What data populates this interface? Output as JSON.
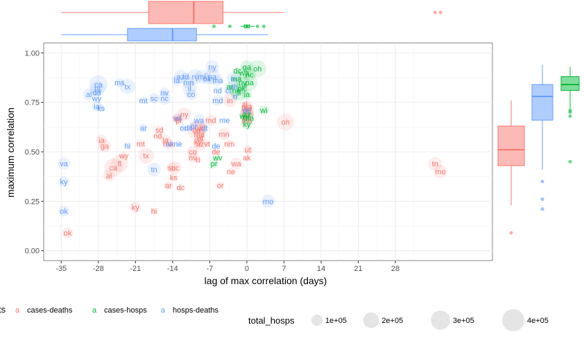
{
  "chart_data": {
    "type": "scatter",
    "xlabel": "lag of max correlation (days)",
    "ylabel": "maximum correlation",
    "xlim": [
      -38.3,
      46.3
    ],
    "ylim": [
      -0.05,
      1.05
    ],
    "x_ticks": [
      -35,
      -28,
      -21,
      -14,
      -7,
      0,
      7,
      14,
      21,
      28
    ],
    "y_ticks": [
      0.0,
      0.25,
      0.5,
      0.75,
      1.0
    ],
    "y_tick_labels": [
      "0.00",
      "0.25",
      "0.50",
      "0.75",
      "1.00"
    ],
    "grid": true,
    "legend_placement": "bottom",
    "series": [
      {
        "name": "cases-deaths",
        "color": "#F8766D",
        "points": [
          {
            "x": -33.8,
            "y": 0.09,
            "label": "ok",
            "size": 100000.0
          },
          {
            "x": -27.4,
            "y": 0.56,
            "label": "ia",
            "size": 90000.0
          },
          {
            "x": -26.8,
            "y": 0.53,
            "label": "ga",
            "size": 130000.0
          },
          {
            "x": -25.2,
            "y": 0.42,
            "label": "ca",
            "size": 280000.0
          },
          {
            "x": -26.0,
            "y": 0.38,
            "label": "al",
            "size": 110000.0
          },
          {
            "x": -24.0,
            "y": 0.44,
            "label": "fl",
            "size": 240000.0
          },
          {
            "x": -23.2,
            "y": 0.48,
            "label": "wy",
            "size": 50000.0
          },
          {
            "x": -20.0,
            "y": 0.54,
            "label": "mt",
            "size": 50000.0
          },
          {
            "x": -19.0,
            "y": 0.48,
            "label": "tx",
            "size": 200000.0
          },
          {
            "x": -21.0,
            "y": 0.22,
            "label": "ky",
            "size": 100000.0
          },
          {
            "x": -17.5,
            "y": 0.2,
            "label": "hi",
            "size": 40000.0
          },
          {
            "x": -16.5,
            "y": 0.61,
            "label": "sd",
            "size": 60000.0
          },
          {
            "x": -16.8,
            "y": 0.58,
            "label": "nd",
            "size": 50000.0
          },
          {
            "x": -14.8,
            "y": 0.54,
            "label": "ma",
            "size": 100000.0
          },
          {
            "x": -15.3,
            "y": 0.56,
            "label": "la",
            "size": 90000.0
          },
          {
            "x": -14.2,
            "y": 0.42,
            "label": "sc",
            "size": 90000.0
          },
          {
            "x": -13.5,
            "y": 0.42,
            "label": "nc",
            "size": 130000.0
          },
          {
            "x": -13.8,
            "y": 0.37,
            "label": "ks",
            "size": 50000.0
          },
          {
            "x": -14.8,
            "y": 0.33,
            "label": "ar",
            "size": 60000.0
          },
          {
            "x": -12.5,
            "y": 0.32,
            "label": "dc",
            "size": 40000.0
          },
          {
            "x": -13.2,
            "y": 0.67,
            "label": "wi",
            "size": 80000.0
          },
          {
            "x": -12.8,
            "y": 0.66,
            "label": "pr",
            "size": 70000.0
          },
          {
            "x": -11.8,
            "y": 0.69,
            "label": "ny",
            "size": 150000.0
          },
          {
            "x": -9.5,
            "y": 0.61,
            "label": "ca",
            "size": 280000.0
          },
          {
            "x": -9.0,
            "y": 0.62,
            "label": "pa",
            "size": 210000.0
          },
          {
            "x": -8.4,
            "y": 0.62,
            "label": "id",
            "size": 60000.0
          },
          {
            "x": -6.8,
            "y": 0.66,
            "label": "md",
            "size": 100000.0
          },
          {
            "x": -9.0,
            "y": 0.59,
            "label": "ma",
            "size": 100000.0
          },
          {
            "x": -8.8,
            "y": 0.57,
            "label": "ut",
            "size": 70000.0
          },
          {
            "x": -9.2,
            "y": 0.55,
            "label": "ky",
            "size": 100000.0
          },
          {
            "x": -8.8,
            "y": 0.54,
            "label": "az",
            "size": 150000.0
          },
          {
            "x": -7.5,
            "y": 0.54,
            "label": "vt",
            "size": 30000.0
          },
          {
            "x": -10.2,
            "y": 0.5,
            "label": "co",
            "size": 110000.0
          },
          {
            "x": -10.2,
            "y": 0.47,
            "label": "nv",
            "size": 80000.0
          },
          {
            "x": -9.2,
            "y": 0.46,
            "label": "ri",
            "size": 40000.0
          },
          {
            "x": -5.8,
            "y": 0.5,
            "label": "de",
            "size": 30000.0
          },
          {
            "x": -4.3,
            "y": 0.59,
            "label": "mn",
            "size": 120000.0
          },
          {
            "x": -3.3,
            "y": 0.54,
            "label": "nm",
            "size": 60000.0
          },
          {
            "x": -2.0,
            "y": 0.44,
            "label": "wa",
            "size": 120000.0
          },
          {
            "x": -3.0,
            "y": 0.4,
            "label": "ne",
            "size": 40000.0
          },
          {
            "x": -5.0,
            "y": 0.33,
            "label": "or",
            "size": 50000.0
          },
          {
            "x": 0.2,
            "y": 0.51,
            "label": "ut",
            "size": 70000.0
          },
          {
            "x": 0.0,
            "y": 0.47,
            "label": "ak",
            "size": 20000.0
          },
          {
            "x": -3.2,
            "y": 0.76,
            "label": "in",
            "size": 150000.0
          },
          {
            "x": -0.3,
            "y": 0.74,
            "label": "ri",
            "size": 40000.0
          },
          {
            "x": 0.0,
            "y": 0.73,
            "label": "ma",
            "size": 100000.0
          },
          {
            "x": 0.0,
            "y": 0.72,
            "label": "me",
            "size": 20000.0
          },
          {
            "x": 0.1,
            "y": 0.71,
            "label": "mi",
            "size": 160000.0
          },
          {
            "x": 0.0,
            "y": 0.69,
            "label": "ny",
            "size": 150000.0
          },
          {
            "x": 0.0,
            "y": 0.66,
            "label": "mn",
            "size": 120000.0
          },
          {
            "x": 7.3,
            "y": 0.65,
            "label": "oh",
            "size": 240000.0
          },
          {
            "x": 35.5,
            "y": 0.44,
            "label": "tn",
            "size": 150000.0
          },
          {
            "x": 36.5,
            "y": 0.4,
            "label": "mo",
            "size": 150000.0
          }
        ]
      },
      {
        "name": "cases-hosps",
        "color": "#00BA38",
        "points": [
          {
            "x": 0.0,
            "y": 0.93,
            "label": "ga",
            "size": 130000.0
          },
          {
            "x": 2.0,
            "y": 0.92,
            "label": "oh",
            "size": 240000.0
          },
          {
            "x": -1.8,
            "y": 0.91,
            "label": "dc",
            "size": 40000.0
          },
          {
            "x": -0.5,
            "y": 0.9,
            "label": "wa",
            "size": 120000.0
          },
          {
            "x": 0.5,
            "y": 0.89,
            "label": "nc",
            "size": 130000.0
          },
          {
            "x": -2.0,
            "y": 0.87,
            "label": "ma",
            "size": 100000.0
          },
          {
            "x": -0.8,
            "y": 0.85,
            "label": "ny",
            "size": 150000.0
          },
          {
            "x": -3.2,
            "y": 0.83,
            "label": "ar",
            "size": 60000.0
          },
          {
            "x": -1.0,
            "y": 0.82,
            "label": "ok",
            "size": 100000.0
          },
          {
            "x": -2.0,
            "y": 0.81,
            "label": "nc",
            "size": 130000.0
          },
          {
            "x": -1.5,
            "y": 0.8,
            "label": "fl",
            "size": 240000.0
          },
          {
            "x": 0.0,
            "y": 0.79,
            "label": "ia",
            "size": 90000.0
          },
          {
            "x": 0.5,
            "y": 0.85,
            "label": "pa",
            "size": 210000.0
          },
          {
            "x": 0.0,
            "y": 0.69,
            "label": "az",
            "size": 150000.0
          },
          {
            "x": -0.5,
            "y": 0.68,
            "label": "wy",
            "size": 50000.0
          },
          {
            "x": 0.3,
            "y": 0.67,
            "label": "mn",
            "size": 120000.0
          },
          {
            "x": 0.0,
            "y": 0.64,
            "label": "ky",
            "size": 100000.0
          },
          {
            "x": 3.2,
            "y": 0.71,
            "label": "wi",
            "size": 80000.0
          },
          {
            "x": -5.5,
            "y": 0.47,
            "label": "wv",
            "size": 40000.0
          },
          {
            "x": -6.2,
            "y": 0.44,
            "label": "pr",
            "size": 70000.0
          }
        ]
      },
      {
        "name": "hosps-deaths",
        "color": "#619CFF",
        "points": [
          {
            "x": -28.0,
            "y": 0.84,
            "label": "ca",
            "size": 280000.0
          },
          {
            "x": -28.2,
            "y": 0.82,
            "label": "nj",
            "size": 180000.0
          },
          {
            "x": -28.3,
            "y": 0.8,
            "label": "dd",
            "size": 40000.0
          },
          {
            "x": -28.3,
            "y": 0.77,
            "label": "wy",
            "size": 50000.0
          },
          {
            "x": -28.3,
            "y": 0.73,
            "label": "ia",
            "size": 90000.0
          },
          {
            "x": -27.5,
            "y": 0.72,
            "label": "ks",
            "size": 50000.0
          },
          {
            "x": -29.8,
            "y": 0.79,
            "label": "al",
            "size": 110000.0
          },
          {
            "x": -24.0,
            "y": 0.85,
            "label": "ms",
            "size": 70000.0
          },
          {
            "x": -22.5,
            "y": 0.83,
            "label": "tx",
            "size": 200000.0
          },
          {
            "x": -19.5,
            "y": 0.76,
            "label": "mt",
            "size": 50000.0
          },
          {
            "x": -17.5,
            "y": 0.77,
            "label": "sc",
            "size": 90000.0
          },
          {
            "x": -15.5,
            "y": 0.8,
            "label": "nv",
            "size": 80000.0
          },
          {
            "x": -15.5,
            "y": 0.77,
            "label": "nc",
            "size": 130000.0
          },
          {
            "x": -13.2,
            "y": 0.86,
            "label": "la",
            "size": 90000.0
          },
          {
            "x": -12.5,
            "y": 0.88,
            "label": "az",
            "size": 150000.0
          },
          {
            "x": -11.5,
            "y": 0.88,
            "label": "id",
            "size": 60000.0
          },
          {
            "x": -11.0,
            "y": 0.85,
            "label": "mn",
            "size": 120000.0
          },
          {
            "x": -10.8,
            "y": 0.82,
            "label": "il",
            "size": 160000.0
          },
          {
            "x": -10.5,
            "y": 0.79,
            "label": "co",
            "size": 110000.0
          },
          {
            "x": -9.8,
            "y": 0.88,
            "label": "nj",
            "size": 180000.0
          },
          {
            "x": -8.5,
            "y": 0.88,
            "label": "mi",
            "size": 160000.0
          },
          {
            "x": -7.5,
            "y": 0.87,
            "label": "ok",
            "size": 100000.0
          },
          {
            "x": -6.5,
            "y": 0.88,
            "label": "pa",
            "size": 210000.0
          },
          {
            "x": -6.5,
            "y": 0.93,
            "label": "ny",
            "size": 150000.0
          },
          {
            "x": -5.5,
            "y": 0.86,
            "label": "ma",
            "size": 100000.0
          },
          {
            "x": -5.5,
            "y": 0.81,
            "label": "nd",
            "size": 50000.0
          },
          {
            "x": -5.5,
            "y": 0.76,
            "label": "md",
            "size": 100000.0
          },
          {
            "x": -2.5,
            "y": 0.87,
            "label": "in",
            "size": 150000.0
          },
          {
            "x": -2.5,
            "y": 0.83,
            "label": "nh",
            "size": 30000.0
          },
          {
            "x": -3.5,
            "y": 0.81,
            "label": "ct",
            "size": 60000.0
          },
          {
            "x": -2.2,
            "y": 0.78,
            "label": "ri",
            "size": 40000.0
          },
          {
            "x": -13.0,
            "y": 0.67,
            "label": "wi",
            "size": 80000.0
          },
          {
            "x": -12.0,
            "y": 0.62,
            "label": "or",
            "size": 50000.0
          },
          {
            "x": -11.0,
            "y": 0.62,
            "label": "dc",
            "size": 40000.0
          },
          {
            "x": -10.0,
            "y": 0.63,
            "label": "pr",
            "size": 70000.0
          },
          {
            "x": -9.0,
            "y": 0.66,
            "label": "wa",
            "size": 120000.0
          },
          {
            "x": -8.0,
            "y": 0.62,
            "label": "ut",
            "size": 70000.0
          },
          {
            "x": -19.5,
            "y": 0.62,
            "label": "ar",
            "size": 60000.0
          },
          {
            "x": -13.0,
            "y": 0.54,
            "label": "ne",
            "size": 40000.0
          },
          {
            "x": -14.5,
            "y": 0.54,
            "label": "ak",
            "size": 20000.0
          },
          {
            "x": -22.5,
            "y": 0.53,
            "label": "hi",
            "size": 40000.0
          },
          {
            "x": -4.2,
            "y": 0.66,
            "label": "me",
            "size": 20000.0
          },
          {
            "x": -5.8,
            "y": 0.53,
            "label": "de",
            "size": 30000.0
          },
          {
            "x": -17.5,
            "y": 0.41,
            "label": "tn",
            "size": 150000.0
          },
          {
            "x": -34.5,
            "y": 0.44,
            "label": "va",
            "size": 130000.0
          },
          {
            "x": -34.5,
            "y": 0.35,
            "label": "ky",
            "size": 100000.0
          },
          {
            "x": -34.5,
            "y": 0.2,
            "label": "ok",
            "size": 100000.0
          },
          {
            "x": 0.0,
            "y": 0.71,
            "label": "de",
            "size": 30000.0
          },
          {
            "x": 4.0,
            "y": 0.25,
            "label": "mo",
            "size": 150000.0
          }
        ]
      }
    ],
    "marginal_x_boxplots": [
      {
        "series": "cases-deaths",
        "whisker_low": -35.0,
        "q1": -18.5,
        "median": -10.0,
        "q3": -4.5,
        "whisker_high": 7.0,
        "outliers": [
          35.5,
          36.5
        ]
      },
      {
        "series": "cases-hosps",
        "whisker_low": -1.2,
        "q1": -0.5,
        "median": 0.0,
        "q3": 0.5,
        "whisker_high": 1.5,
        "outliers": [
          -6.2,
          -3.2,
          2.0,
          3.2
        ]
      },
      {
        "series": "hosps-deaths",
        "whisker_low": -35.0,
        "q1": -22.5,
        "median": -14.0,
        "q3": -9.5,
        "whisker_high": 4.0,
        "outliers": []
      }
    ],
    "marginal_y_boxplots": [
      {
        "series": "cases-deaths",
        "whisker_low": 0.23,
        "q1": 0.43,
        "median": 0.51,
        "q3": 0.63,
        "whisker_high": 0.76,
        "outliers": [
          0.09
        ]
      },
      {
        "series": "hosps-deaths",
        "whisker_low": 0.41,
        "q1": 0.66,
        "median": 0.78,
        "q3": 0.84,
        "whisker_high": 0.94,
        "outliers": [
          0.35,
          0.26,
          0.21
        ]
      },
      {
        "series": "cases-hosps",
        "whisker_low": 0.72,
        "q1": 0.81,
        "median": 0.84,
        "q3": 0.88,
        "whisker_high": 0.93,
        "outliers": [
          0.71,
          0.7,
          0.68,
          0.45
        ]
      }
    ],
    "legend": {
      "color_title": "ts",
      "color_entries": [
        {
          "glyph": "a",
          "label": "cases-deaths",
          "color": "#F8766D"
        },
        {
          "glyph": "a",
          "label": "cases-hosps",
          "color": "#00BA38"
        },
        {
          "glyph": "a",
          "label": "hosps-deaths",
          "color": "#619CFF"
        }
      ],
      "size_title": "total_hosps",
      "size_entries": [
        {
          "label": "1e+05",
          "value": 100000.0
        },
        {
          "label": "2e+05",
          "value": 200000.0
        },
        {
          "label": "3e+05",
          "value": 300000.0
        },
        {
          "label": "4e+05",
          "value": 400000.0
        }
      ]
    }
  }
}
